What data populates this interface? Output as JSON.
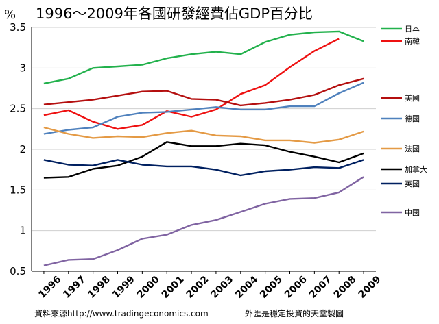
{
  "chart_data": {
    "type": "line",
    "title": "1996～2009年各國研發經費佔GDP百分比",
    "unit_label": "%",
    "x": [
      1996,
      1997,
      1998,
      1999,
      2000,
      2001,
      2002,
      2003,
      2004,
      2005,
      2006,
      2007,
      2008,
      2009
    ],
    "ylim": [
      0.5,
      3.5
    ],
    "yticks": [
      "0.5",
      "1",
      "1.5",
      "2",
      "2.5",
      "3",
      "3.5"
    ],
    "grid": true,
    "legend_position": "right",
    "series": [
      {
        "name": "日本",
        "color": "#22b14c",
        "values": [
          2.81,
          2.87,
          3.0,
          3.02,
          3.04,
          3.12,
          3.17,
          3.2,
          3.17,
          3.32,
          3.41,
          3.44,
          3.45,
          3.33
        ]
      },
      {
        "name": "南韓",
        "color": "#ee1111",
        "values": [
          2.42,
          2.48,
          2.34,
          2.25,
          2.3,
          2.47,
          2.4,
          2.49,
          2.68,
          2.79,
          3.01,
          3.21,
          3.36,
          null
        ]
      },
      {
        "name": "美國",
        "color": "#b40f0f",
        "values": [
          2.55,
          2.58,
          2.61,
          2.66,
          2.71,
          2.72,
          2.62,
          2.61,
          2.54,
          2.57,
          2.61,
          2.67,
          2.79,
          2.87
        ]
      },
      {
        "name": "德國",
        "color": "#4f81bd",
        "values": [
          2.19,
          2.24,
          2.27,
          2.4,
          2.45,
          2.46,
          2.49,
          2.52,
          2.49,
          2.49,
          2.53,
          2.53,
          2.69,
          2.82
        ]
      },
      {
        "name": "法國",
        "color": "#e49a45",
        "values": [
          2.27,
          2.19,
          2.14,
          2.16,
          2.15,
          2.2,
          2.23,
          2.17,
          2.16,
          2.11,
          2.11,
          2.08,
          2.12,
          2.22
        ]
      },
      {
        "name": "加拿大",
        "color": "#000000",
        "values": [
          1.65,
          1.66,
          1.76,
          1.8,
          1.91,
          2.09,
          2.04,
          2.04,
          2.07,
          2.05,
          1.97,
          1.91,
          1.84,
          1.95
        ]
      },
      {
        "name": "英國",
        "color": "#002060",
        "values": [
          1.87,
          1.81,
          1.8,
          1.87,
          1.81,
          1.79,
          1.79,
          1.75,
          1.68,
          1.73,
          1.75,
          1.78,
          1.77,
          1.87
        ]
      },
      {
        "name": "中國",
        "color": "#8064a2",
        "values": [
          0.57,
          0.64,
          0.65,
          0.76,
          0.9,
          0.95,
          1.07,
          1.13,
          1.23,
          1.33,
          1.39,
          1.4,
          1.47,
          1.66
        ]
      }
    ]
  },
  "footer": {
    "source": "資料來源http://www.tradingeconomics.com",
    "tagline": "外匯是穩定投資的天堂製圖"
  }
}
